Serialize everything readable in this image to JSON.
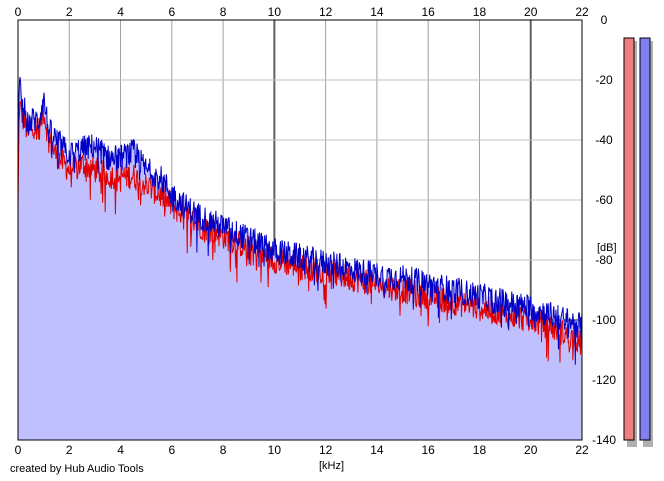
{
  "chart_data": {
    "type": "area",
    "title": "",
    "xlabel": "[kHz]",
    "ylabel": "[dB]",
    "xlim": [
      0,
      22
    ],
    "ylim": [
      -140,
      0
    ],
    "x_ticks": [
      0,
      2,
      4,
      6,
      8,
      10,
      12,
      14,
      16,
      18,
      20,
      22
    ],
    "y_ticks": [
      0,
      -20,
      -40,
      -60,
      -80,
      -100,
      -120,
      -140
    ],
    "grid": true,
    "series": [
      {
        "color": "#e00000",
        "x": [
          0,
          0.05,
          0.2,
          0.4,
          0.6,
          0.8,
          1.0,
          1.2,
          1.5,
          2.0,
          2.5,
          3.0,
          3.5,
          4.0,
          4.5,
          5.0,
          5.5,
          6.0,
          6.5,
          7.0,
          7.5,
          8.0,
          8.5,
          9.0,
          9.5,
          10.0,
          11.0,
          12.0,
          13.0,
          14.0,
          15.0,
          16.0,
          17.0,
          18.0,
          19.0,
          20.0,
          21.0,
          22.0
        ],
        "values": [
          -65,
          -28,
          -33,
          -38,
          -35,
          -37,
          -30,
          -40,
          -45,
          -50,
          -48,
          -50,
          -52,
          -52,
          -52,
          -55,
          -58,
          -62,
          -65,
          -68,
          -70,
          -72,
          -74,
          -76,
          -78,
          -80,
          -82,
          -84,
          -86,
          -88,
          -90,
          -92,
          -94,
          -96,
          -98,
          -100,
          -103,
          -108
        ]
      },
      {
        "color": "#0000c8",
        "x": [
          0,
          0.05,
          0.2,
          0.4,
          0.6,
          0.8,
          1.0,
          1.2,
          1.5,
          2.0,
          2.5,
          3.0,
          3.5,
          4.0,
          4.5,
          5.0,
          5.5,
          6.0,
          6.5,
          7.0,
          7.5,
          8.0,
          8.5,
          9.0,
          9.5,
          10.0,
          11.0,
          12.0,
          13.0,
          14.0,
          15.0,
          16.0,
          17.0,
          18.0,
          19.0,
          20.0,
          21.0,
          22.0
        ],
        "values": [
          -42,
          -22,
          -28,
          -35,
          -33,
          -34,
          -26,
          -37,
          -40,
          -45,
          -43,
          -42,
          -46,
          -46,
          -44,
          -50,
          -52,
          -58,
          -62,
          -65,
          -67,
          -69,
          -71,
          -73,
          -75,
          -77,
          -79,
          -81,
          -83,
          -85,
          -86,
          -88,
          -90,
          -92,
          -94,
          -96,
          -99,
          -102
        ]
      }
    ],
    "fill_color": "#c0c0ff",
    "level_meters": [
      {
        "color": "#f08080",
        "level_db": -6
      },
      {
        "color": "#8080f0",
        "level_db": -6
      }
    ]
  },
  "credit": "created by Hub Audio Tools"
}
